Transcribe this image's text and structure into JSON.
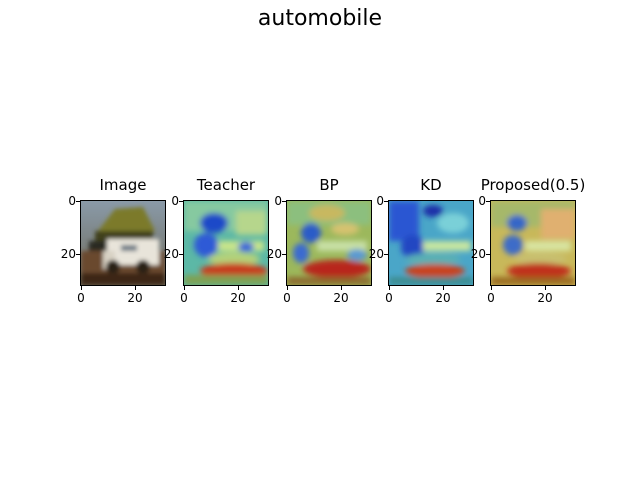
{
  "figure": {
    "title": "automobile"
  },
  "chart_data": {
    "type": "heatmap",
    "title": "automobile",
    "panels": [
      {
        "title": "Image",
        "kind": "photo"
      },
      {
        "title": "Teacher",
        "kind": "heatmap"
      },
      {
        "title": "BP",
        "kind": "heatmap"
      },
      {
        "title": "KD",
        "kind": "heatmap"
      },
      {
        "title": "Proposed(0.5)",
        "kind": "heatmap"
      }
    ],
    "x_ticks": [
      "0",
      "20"
    ],
    "y_ticks": [
      "0",
      "20"
    ],
    "xlim": [
      0,
      31
    ],
    "ylim": [
      31,
      0
    ],
    "grid": false,
    "colormap": "jet"
  }
}
